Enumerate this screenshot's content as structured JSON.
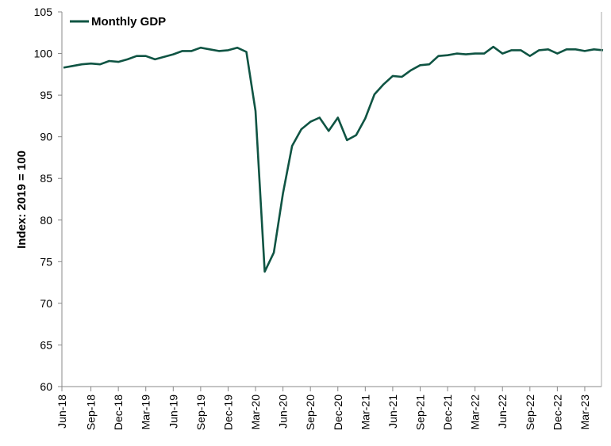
{
  "chart_data": {
    "type": "line",
    "title": "",
    "xlabel": "",
    "ylabel": "Index: 2019 = 100",
    "ylim": [
      60,
      105
    ],
    "yticks": [
      60,
      65,
      70,
      75,
      80,
      85,
      90,
      95,
      100,
      105
    ],
    "grid": false,
    "legend_position": "top-left",
    "color": "#0f5443",
    "x_tick_labels": [
      "Jun-18",
      "Sep-18",
      "Dec-18",
      "Mar-19",
      "Jun-19",
      "Sep-19",
      "Dec-19",
      "Mar-20",
      "Jun-20",
      "Sep-20",
      "Dec-20",
      "Mar-21",
      "Jun-21",
      "Sep-21",
      "Dec-21",
      "Mar-22",
      "Jun-22",
      "Sep-22",
      "Dec-22",
      "Mar-23"
    ],
    "x": [
      "Jun-18",
      "Jul-18",
      "Aug-18",
      "Sep-18",
      "Oct-18",
      "Nov-18",
      "Dec-18",
      "Jan-19",
      "Feb-19",
      "Mar-19",
      "Apr-19",
      "May-19",
      "Jun-19",
      "Jul-19",
      "Aug-19",
      "Sep-19",
      "Oct-19",
      "Nov-19",
      "Dec-19",
      "Jan-20",
      "Feb-20",
      "Mar-20",
      "Apr-20",
      "May-20",
      "Jun-20",
      "Jul-20",
      "Aug-20",
      "Sep-20",
      "Oct-20",
      "Nov-20",
      "Dec-20",
      "Jan-21",
      "Feb-21",
      "Mar-21",
      "Apr-21",
      "May-21",
      "Jun-21",
      "Jul-21",
      "Aug-21",
      "Sep-21",
      "Oct-21",
      "Nov-21",
      "Dec-21",
      "Jan-22",
      "Feb-22",
      "Mar-22",
      "Apr-22",
      "May-22",
      "Jun-22",
      "Jul-22",
      "Aug-22",
      "Sep-22",
      "Oct-22",
      "Nov-22",
      "Dec-22",
      "Jan-23",
      "Feb-23",
      "Mar-23",
      "Apr-23",
      "May-23"
    ],
    "series": [
      {
        "name": "Monthly GDP",
        "values": [
          98.3,
          98.5,
          98.7,
          98.8,
          98.7,
          99.1,
          99.0,
          99.3,
          99.7,
          99.7,
          99.3,
          99.6,
          99.9,
          100.3,
          100.3,
          100.7,
          100.5,
          100.3,
          100.4,
          100.7,
          100.2,
          93.1,
          73.8,
          76.1,
          83.2,
          88.9,
          90.9,
          91.8,
          92.3,
          90.7,
          92.3,
          89.6,
          90.2,
          92.2,
          95.1,
          96.3,
          97.3,
          97.2,
          98.0,
          98.6,
          98.7,
          99.7,
          99.8,
          100.0,
          99.9,
          100.0,
          100.0,
          100.8,
          100.0,
          100.4,
          100.4,
          99.7,
          100.4,
          100.5,
          100.0,
          100.5,
          100.5,
          100.3,
          100.5,
          100.4
        ]
      }
    ]
  }
}
